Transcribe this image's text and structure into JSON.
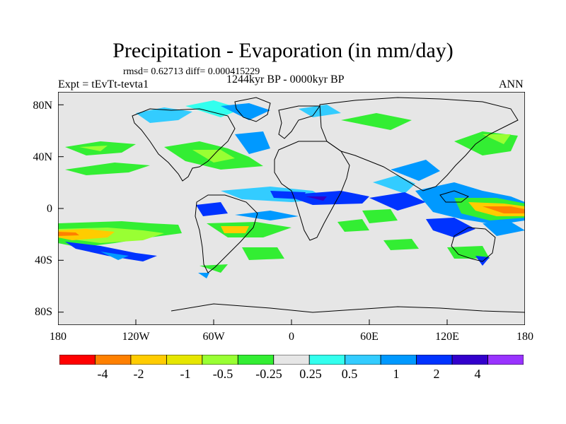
{
  "title": "Precipitation - Evaporation (in mm/day)",
  "stats": "rmsd= 0.62713 diff= 0.000415229",
  "experiment": "Expt = tEvTt-tevta1",
  "period": "1244kyr BP - 0000kyr BP",
  "season": "ANN",
  "map": {
    "lat_labels": [
      "80N",
      "40N",
      "0",
      "40S",
      "80S"
    ],
    "lon_labels": [
      "180",
      "120W",
      "60W",
      "0",
      "60E",
      "120E",
      "180"
    ]
  },
  "colorbar": {
    "colors": [
      "#ff0000",
      "#ff8000",
      "#ffcc00",
      "#e6e600",
      "#99ff33",
      "#33ee33",
      "#e6e6e6",
      "#33ffee",
      "#33ccff",
      "#0099ff",
      "#0033ff",
      "#3300cc",
      "#9933ff"
    ],
    "labels": [
      "-4",
      "-2",
      "-1",
      "-0.5",
      "-0.25",
      "0.25",
      "0.5",
      "1",
      "2",
      "4"
    ]
  }
}
